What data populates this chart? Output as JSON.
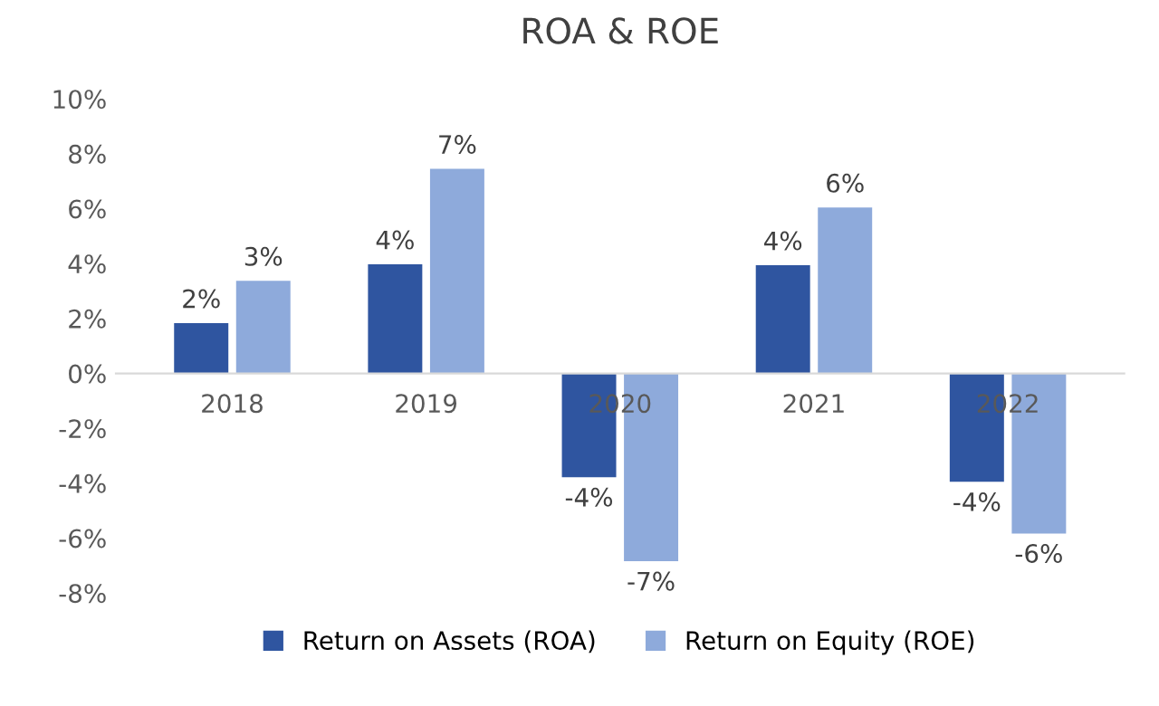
{
  "chart_data": {
    "type": "bar",
    "title": "ROA & ROE",
    "categories": [
      "2018",
      "2019",
      "2020",
      "2021",
      "2022"
    ],
    "series": [
      {
        "name": "Return on Assets (ROA)",
        "color": "#2f55a0",
        "values": [
          1.83,
          3.97,
          -3.78,
          3.94,
          -3.95
        ],
        "value_labels": [
          "2%",
          "4%",
          "-4%",
          "4%",
          "-4%"
        ]
      },
      {
        "name": "Return on Equity (ROE)",
        "color": "#8eaadb",
        "values": [
          3.37,
          7.45,
          -6.84,
          6.04,
          -5.83
        ],
        "value_labels": [
          "3%",
          "7%",
          "-7%",
          "6%",
          "-6%"
        ]
      }
    ],
    "ylim": [
      -8,
      10
    ],
    "yticks": [
      {
        "value": -8,
        "label": "-8%"
      },
      {
        "value": -6,
        "label": "-6%"
      },
      {
        "value": -4,
        "label": "-4%"
      },
      {
        "value": -2,
        "label": "-2%"
      },
      {
        "value": 0,
        "label": "0%"
      },
      {
        "value": 2,
        "label": "2%"
      },
      {
        "value": 4,
        "label": "4%"
      },
      {
        "value": 6,
        "label": "6%"
      },
      {
        "value": 8,
        "label": "8%"
      },
      {
        "value": 10,
        "label": "10%"
      }
    ],
    "grid": false,
    "legend": "bottom"
  }
}
